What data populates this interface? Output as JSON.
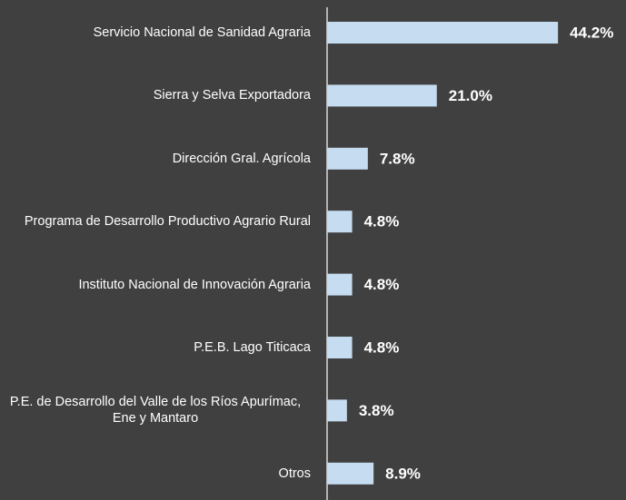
{
  "chart_data": {
    "type": "bar",
    "orientation": "horizontal",
    "categories": [
      "Servicio Nacional de Sanidad Agraria",
      "Sierra y Selva Exportadora",
      "Dirección Gral. Agrícola",
      "Programa de Desarrollo Productivo Agrario Rural",
      "Instituto Nacional de Innovación Agraria",
      "P.E.B. Lago Titicaca",
      "P.E. de Desarrollo del Valle de los Ríos Apurímac, Ene y Mantaro",
      "Otros"
    ],
    "values": [
      44.2,
      21.0,
      7.8,
      4.8,
      4.8,
      4.8,
      3.8,
      8.9
    ],
    "value_labels": [
      "44.2%",
      "21.0%",
      "7.8%",
      "4.8%",
      "4.8%",
      "4.8%",
      "3.8%",
      "8.9%"
    ],
    "color": "#c5dcf1"
  }
}
